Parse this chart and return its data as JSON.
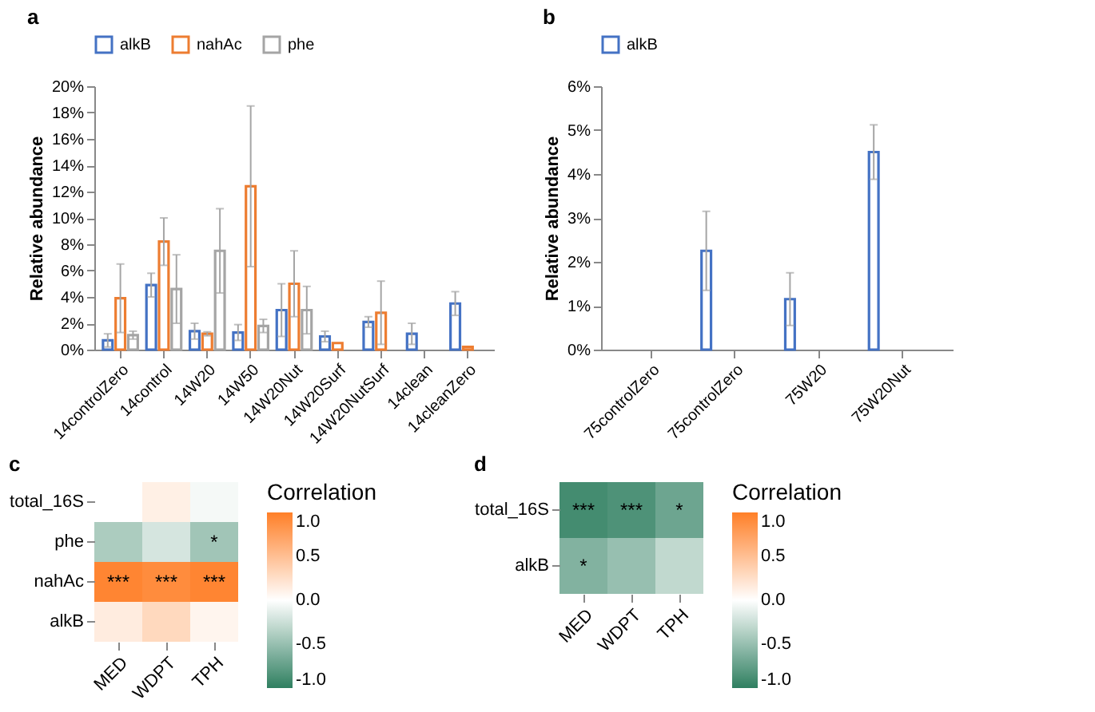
{
  "chart_data": [
    {
      "type": "bar",
      "title": "a",
      "ylabel": "Relative abundance",
      "legend": "top",
      "categories": [
        "14controlZero",
        "14control",
        "14W20",
        "14W50",
        "14W20Nut",
        "14W20Surf",
        "14W20NutSurf",
        "14clean",
        "14cleanZero"
      ],
      "series": [
        {
          "name": "alkB",
          "color": "#4472c4",
          "values": [
            0.7,
            4.9,
            1.4,
            1.3,
            3.0,
            1.0,
            2.1,
            1.2,
            3.5
          ],
          "errors": [
            0.5,
            0.9,
            0.6,
            0.6,
            2.0,
            0.4,
            0.4,
            0.8,
            0.9
          ]
        },
        {
          "name": "nahAc",
          "color": "#ed7d31",
          "values": [
            3.9,
            8.2,
            1.2,
            12.4,
            5.0,
            0.5,
            2.8,
            null,
            0.2
          ],
          "errors": [
            2.6,
            1.8,
            0.15,
            6.1,
            2.5,
            null,
            2.4,
            null,
            null
          ]
        },
        {
          "name": "phe",
          "color": "#a5a5a5",
          "values": [
            1.1,
            4.6,
            7.5,
            1.8,
            3.0,
            null,
            null,
            null,
            null
          ],
          "errors": [
            0.3,
            2.6,
            3.2,
            0.5,
            1.8,
            null,
            null,
            null,
            null
          ]
        }
      ],
      "ylim": [
        0,
        20
      ],
      "yticks": [
        {
          "value": 0,
          "label": "0%"
        },
        {
          "value": 2,
          "label": "2%"
        },
        {
          "value": 4,
          "label": "4%"
        },
        {
          "value": 6,
          "label": "6%"
        },
        {
          "value": 8,
          "label": "8%"
        },
        {
          "value": 10,
          "label": "10%"
        },
        {
          "value": 12,
          "label": "12%"
        },
        {
          "value": 14,
          "label": "14%"
        },
        {
          "value": 16,
          "label": "16%"
        },
        {
          "value": 18,
          "label": "18%"
        },
        {
          "value": 20,
          "label": "20%"
        }
      ]
    },
    {
      "type": "bar",
      "title": "b",
      "ylabel": "Relative abundance",
      "legend": "top",
      "categories": [
        "75controlZero",
        "75controlZero",
        "75W20",
        "75W20Nut"
      ],
      "series": [
        {
          "name": "alkB",
          "color": "#4472c4",
          "values": [
            null,
            2.25,
            1.15,
            4.5
          ],
          "errors": [
            null,
            0.9,
            0.6,
            0.62
          ]
        }
      ],
      "ylim": [
        0,
        6
      ],
      "yticks": [
        {
          "value": 0,
          "label": "0%"
        },
        {
          "value": 1,
          "label": "1%"
        },
        {
          "value": 2,
          "label": "2%"
        },
        {
          "value": 3,
          "label": "3%"
        },
        {
          "value": 4,
          "label": "4%"
        },
        {
          "value": 5,
          "label": "5%"
        },
        {
          "value": 6,
          "label": "6%"
        }
      ]
    },
    {
      "type": "heatmap",
      "title": "c",
      "legend_title": "Correlation",
      "categories": [
        "MED",
        "WDPT",
        "TPH"
      ],
      "y_categories": [
        "total_16S",
        "phe",
        "nahAc",
        "alkB"
      ],
      "cells": [
        [
          0.0,
          0.12,
          -0.05
        ],
        [
          -0.4,
          -0.2,
          -0.45
        ],
        [
          0.95,
          0.9,
          0.95
        ],
        [
          0.15,
          0.3,
          0.08
        ]
      ],
      "cell_labels": [
        [
          null,
          null,
          null
        ],
        [
          null,
          null,
          "*"
        ],
        [
          "***",
          "***",
          "***"
        ],
        [
          null,
          null,
          null
        ]
      ],
      "clim": [
        -1,
        1
      ],
      "cticks": [
        {
          "value": -1,
          "label": "-1.0"
        },
        {
          "value": -0.5,
          "label": "-0.5"
        },
        {
          "value": 0,
          "label": "0.0"
        },
        {
          "value": 0.5,
          "label": "0.5"
        },
        {
          "value": 1,
          "label": "1.0"
        }
      ]
    },
    {
      "type": "heatmap",
      "title": "d",
      "legend_title": "Correlation",
      "categories": [
        "MED",
        "WDPT",
        "TPH"
      ],
      "y_categories": [
        "total_16S",
        "alkB"
      ],
      "cells": [
        [
          -0.9,
          -0.85,
          -0.7
        ],
        [
          -0.6,
          -0.5,
          -0.3
        ]
      ],
      "cell_labels": [
        [
          "***",
          "***",
          "*"
        ],
        [
          "*",
          null,
          null
        ]
      ],
      "clim": [
        -1,
        1
      ],
      "cticks": [
        {
          "value": -1,
          "label": "-1.0"
        },
        {
          "value": -0.5,
          "label": "-0.5"
        },
        {
          "value": 0,
          "label": "0.0"
        },
        {
          "value": 0.5,
          "label": "0.5"
        },
        {
          "value": 1,
          "label": "1.0"
        }
      ]
    }
  ]
}
